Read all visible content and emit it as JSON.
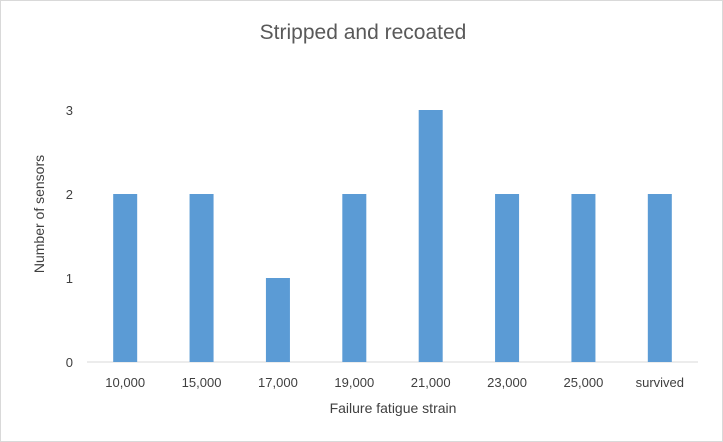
{
  "chart_data": {
    "type": "bar",
    "title": "Stripped and recoated",
    "xlabel": "Failure fatigue strain",
    "ylabel": "Number of sensors",
    "categories": [
      "10,000",
      "15,000",
      "17,000",
      "19,000",
      "21,000",
      "23,000",
      "25,000",
      "survived"
    ],
    "values": [
      2,
      2,
      1,
      2,
      3,
      2,
      2,
      2
    ],
    "ylim": [
      0,
      3
    ],
    "yticks": [
      "0",
      "1",
      "2",
      "3"
    ],
    "grid": false,
    "legend": "none",
    "colors": {
      "bar": "#5b9bd5",
      "axis": "#d9d9d9"
    }
  }
}
